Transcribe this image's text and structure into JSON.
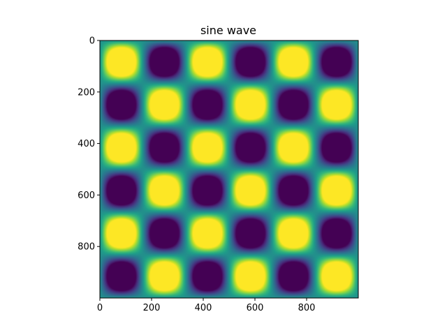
{
  "chart_data": {
    "type": "heatmap",
    "title": "sine wave",
    "xlabel": "",
    "ylabel": "",
    "colormap": "viridis",
    "data_function": "sin(2*pi*x/f)*sin(2*pi*y/f), clipped to [-0.5, 0.5]",
    "period": 333,
    "value_range": [
      -0.5,
      0.5
    ],
    "xlim": [
      0,
      1000
    ],
    "ylim": [
      1000,
      0
    ],
    "x_ticks": [
      0,
      200,
      400,
      600,
      800
    ],
    "x_tick_labels": [
      "0",
      "200",
      "400",
      "600",
      "800"
    ],
    "y_ticks": [
      0,
      200,
      400,
      600,
      800
    ],
    "y_tick_labels": [
      "0",
      "200",
      "400",
      "600",
      "800"
    ],
    "grid": false,
    "colors": {
      "low": "#440154",
      "high": "#fde725"
    }
  }
}
